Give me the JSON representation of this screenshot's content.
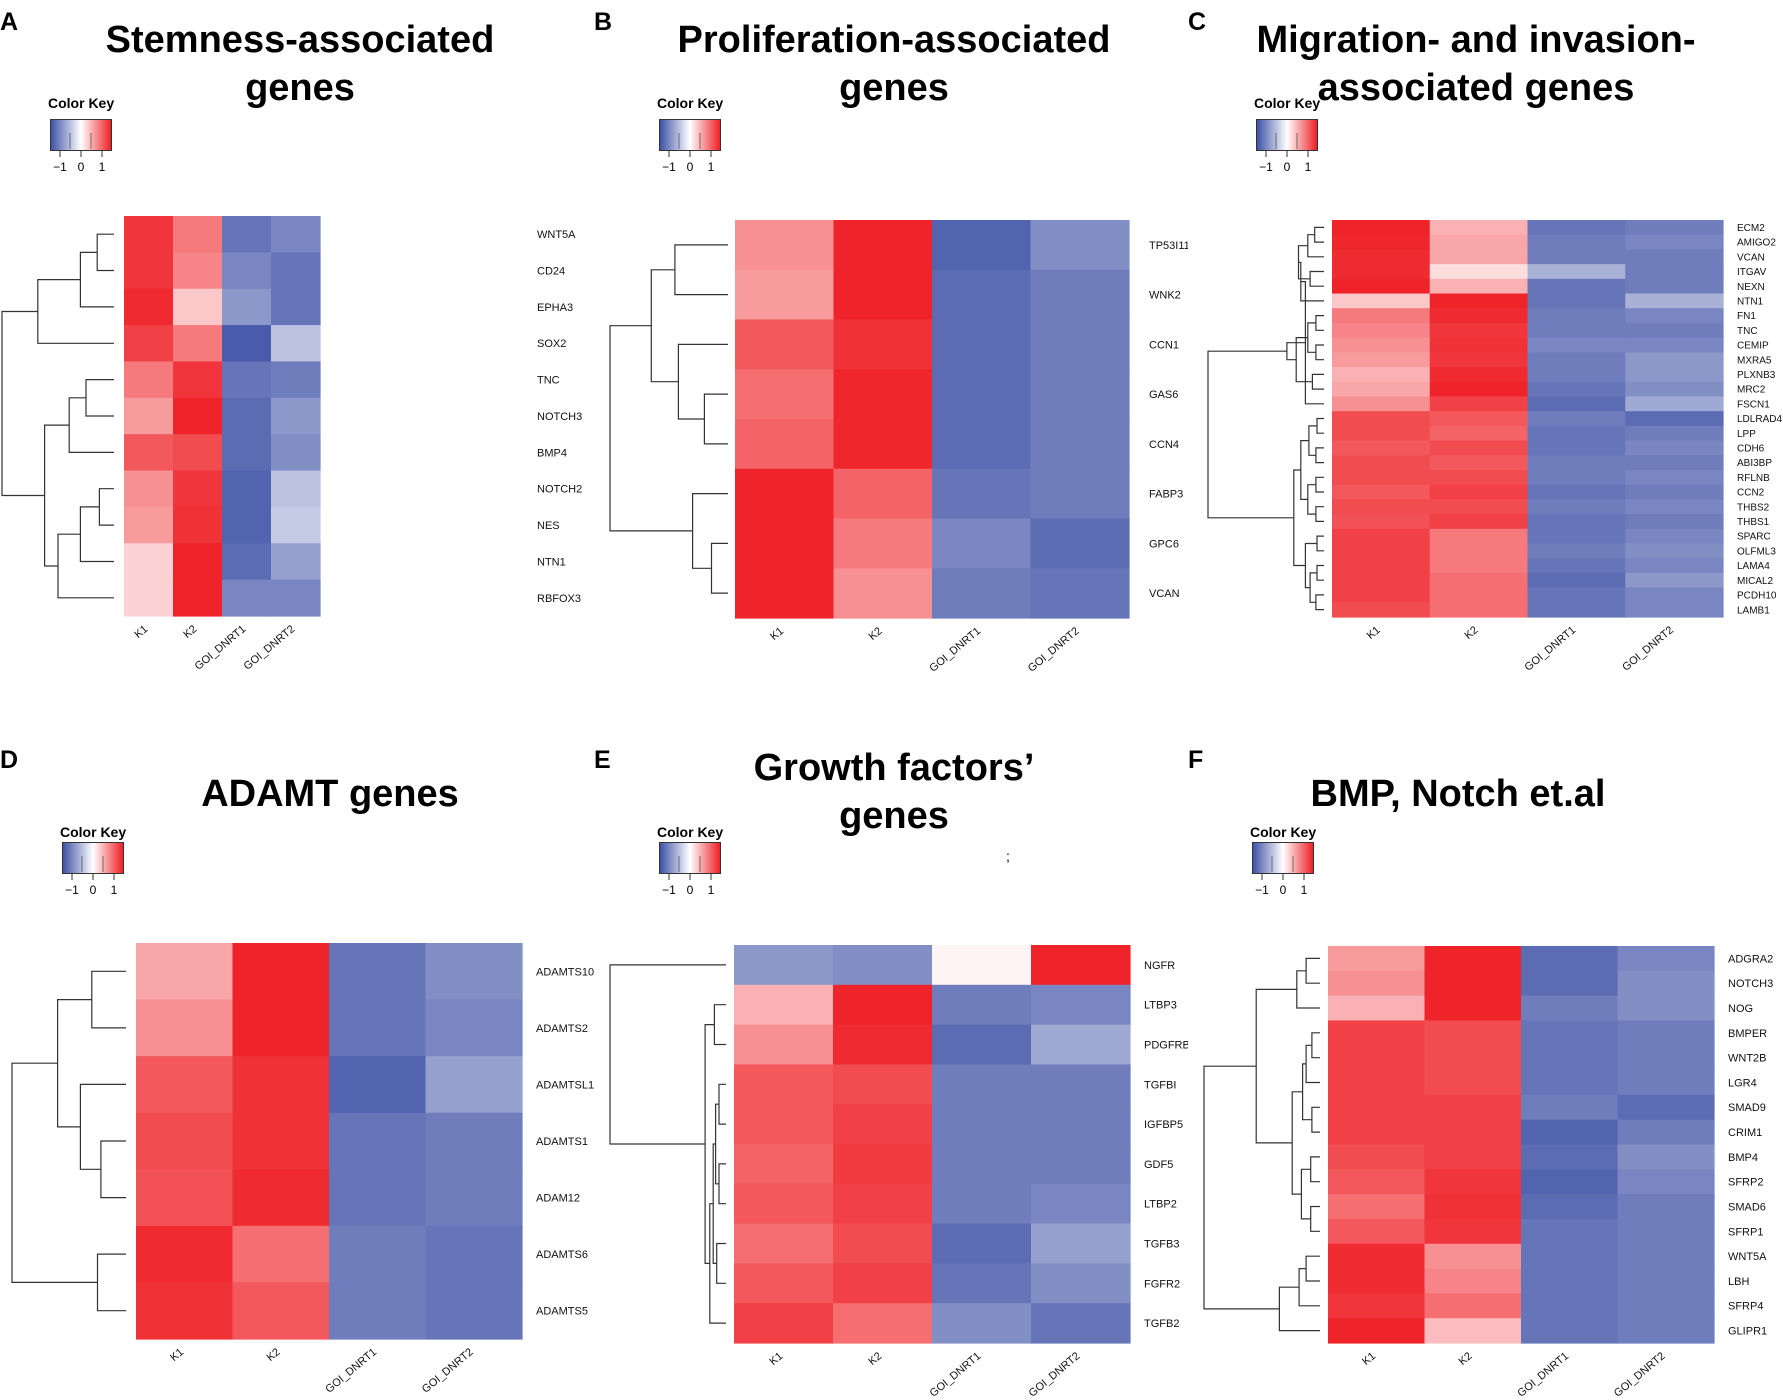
{
  "figure": {
    "panel_count": 6
  },
  "colors": {
    "low": "#3f52a6",
    "mid": "#ffffff",
    "high": "#ee2026",
    "dendrogram": "#333333"
  },
  "chart_data": [
    {
      "panel": "A",
      "type": "heatmap",
      "title_lines": [
        "Stemness-associated",
        "genes"
      ],
      "color_key": {
        "label": "Color Key",
        "ticks": [
          "−1",
          "0",
          "1"
        ],
        "range": [
          -1,
          1
        ]
      },
      "columns": [
        "K1",
        "K2",
        "GOI_DNRT1",
        "GOI_DNRT2"
      ],
      "rows": [
        "WNT5A",
        "CD24",
        "EPHA3",
        "SOX2",
        "TNC",
        "NOTCH3",
        "BMP4",
        "NOTCH2",
        "NES",
        "NTN1",
        "RBFOX3"
      ],
      "values": [
        [
          0.9,
          0.6,
          -0.8,
          -0.7
        ],
        [
          0.9,
          0.55,
          -0.7,
          -0.8
        ],
        [
          0.95,
          0.25,
          -0.6,
          -0.8
        ],
        [
          0.85,
          0.6,
          -0.95,
          -0.35
        ],
        [
          0.6,
          0.9,
          -0.8,
          -0.75
        ],
        [
          0.45,
          0.98,
          -0.85,
          -0.6
        ],
        [
          0.75,
          0.8,
          -0.85,
          -0.65
        ],
        [
          0.5,
          0.9,
          -0.9,
          -0.35
        ],
        [
          0.45,
          0.92,
          -0.9,
          -0.3
        ],
        [
          0.2,
          0.98,
          -0.85,
          -0.55
        ],
        [
          0.2,
          0.98,
          -0.7,
          -0.7
        ]
      ],
      "dendrogram": {
        "merges": [
          [
            0,
            1
          ],
          [
            11,
            2
          ],
          [
            12,
            3
          ],
          [
            7,
            8
          ],
          [
            14,
            9
          ],
          [
            15,
            10
          ],
          [
            4,
            5
          ],
          [
            17,
            6
          ],
          [
            18,
            16
          ],
          [
            13,
            19
          ]
        ],
        "heights": [
          0.15,
          0.3,
          0.68,
          0.13,
          0.3,
          0.5,
          0.25,
          0.4,
          0.62,
          1.0
        ]
      }
    },
    {
      "panel": "B",
      "type": "heatmap",
      "title_lines": [
        "Proliferation-associated",
        "genes"
      ],
      "color_key": {
        "label": "Color Key",
        "ticks": [
          "−1",
          "0",
          "1"
        ],
        "range": [
          -1,
          1
        ]
      },
      "columns": [
        "K1",
        "K2",
        "GOI_DNRT1",
        "GOI_DNRT2"
      ],
      "rows": [
        "TP53I11",
        "WNK2",
        "CCN1",
        "GAS6",
        "CCN4",
        "FABP3",
        "GPC6",
        "VCAN"
      ],
      "values": [
        [
          0.5,
          0.98,
          -0.9,
          -0.65
        ],
        [
          0.45,
          0.98,
          -0.85,
          -0.75
        ],
        [
          0.75,
          0.92,
          -0.85,
          -0.75
        ],
        [
          0.65,
          0.97,
          -0.85,
          -0.75
        ],
        [
          0.7,
          0.97,
          -0.85,
          -0.75
        ],
        [
          0.98,
          0.7,
          -0.8,
          -0.75
        ],
        [
          0.98,
          0.6,
          -0.7,
          -0.85
        ],
        [
          0.98,
          0.5,
          -0.75,
          -0.8
        ]
      ],
      "dendrogram": {
        "merges": [
          [
            0,
            1
          ],
          [
            3,
            4
          ],
          [
            2,
            9
          ],
          [
            6,
            7
          ],
          [
            5,
            11
          ],
          [
            8,
            10
          ],
          [
            12,
            13
          ]
        ],
        "heights": [
          0.45,
          0.2,
          0.42,
          0.14,
          0.3,
          0.65,
          1.0
        ]
      }
    },
    {
      "panel": "C",
      "type": "heatmap",
      "title_lines": [
        "Migration- and invasion-",
        "associated genes"
      ],
      "color_key": {
        "label": "Color Key",
        "ticks": [
          "−1",
          "0",
          "1"
        ],
        "range": [
          -1,
          1
        ]
      },
      "columns": [
        "K1",
        "K2",
        "GOI_DNRT1",
        "GOI_DNRT2"
      ],
      "rows": [
        "ECM2",
        "AMIGO2",
        "VCAN",
        "ITGAV",
        "NEXN",
        "NTN1",
        "FN1",
        "TNC",
        "CEMIP",
        "MXRA5",
        "PLXNB3",
        "MRC2",
        "FSCN1",
        "LDLRAD4",
        "LPP",
        "CDH6",
        "ABI3BP",
        "RFLNB",
        "CCN2",
        "THBS2",
        "THBS1",
        "SPARC",
        "OLFML3",
        "LAMA4",
        "MICAL2",
        "PCDH10",
        "LAMB1"
      ],
      "values": [
        [
          0.98,
          0.35,
          -0.8,
          -0.75
        ],
        [
          0.97,
          0.4,
          -0.75,
          -0.7
        ],
        [
          0.95,
          0.4,
          -0.75,
          -0.75
        ],
        [
          0.95,
          0.15,
          -0.45,
          -0.75
        ],
        [
          0.98,
          0.35,
          -0.8,
          -0.75
        ],
        [
          0.25,
          0.98,
          -0.8,
          -0.45
        ],
        [
          0.6,
          0.95,
          -0.75,
          -0.7
        ],
        [
          0.55,
          0.9,
          -0.75,
          -0.75
        ],
        [
          0.5,
          0.92,
          -0.7,
          -0.7
        ],
        [
          0.45,
          0.9,
          -0.75,
          -0.6
        ],
        [
          0.35,
          0.95,
          -0.75,
          -0.6
        ],
        [
          0.4,
          0.98,
          -0.8,
          -0.65
        ],
        [
          0.5,
          0.85,
          -0.85,
          -0.5
        ],
        [
          0.8,
          0.75,
          -0.75,
          -0.85
        ],
        [
          0.8,
          0.7,
          -0.8,
          -0.75
        ],
        [
          0.75,
          0.8,
          -0.8,
          -0.7
        ],
        [
          0.8,
          0.75,
          -0.75,
          -0.75
        ],
        [
          0.8,
          0.8,
          -0.75,
          -0.7
        ],
        [
          0.75,
          0.85,
          -0.8,
          -0.75
        ],
        [
          0.8,
          0.8,
          -0.75,
          -0.7
        ],
        [
          0.78,
          0.85,
          -0.8,
          -0.75
        ],
        [
          0.85,
          0.6,
          -0.8,
          -0.7
        ],
        [
          0.85,
          0.6,
          -0.75,
          -0.65
        ],
        [
          0.85,
          0.6,
          -0.8,
          -0.7
        ],
        [
          0.85,
          0.65,
          -0.85,
          -0.6
        ],
        [
          0.85,
          0.65,
          -0.8,
          -0.7
        ],
        [
          0.8,
          0.65,
          -0.8,
          -0.7
        ]
      ],
      "dendrogram": {
        "merges": [
          [
            0,
            1
          ],
          [
            27,
            2
          ],
          [
            3,
            4
          ],
          [
            28,
            29
          ],
          [
            6,
            7
          ],
          [
            8,
            9
          ],
          [
            31,
            32
          ],
          [
            30,
            5
          ],
          [
            10,
            11
          ],
          [
            34,
            12
          ],
          [
            33,
            35
          ],
          [
            36,
            37
          ],
          [
            13,
            14
          ],
          [
            15,
            16
          ],
          [
            39,
            40
          ],
          [
            17,
            18
          ],
          [
            19,
            20
          ],
          [
            42,
            43
          ],
          [
            41,
            44
          ],
          [
            21,
            22
          ],
          [
            23,
            24
          ],
          [
            25,
            26
          ],
          [
            47,
            48
          ],
          [
            46,
            49
          ],
          [
            45,
            50
          ],
          [
            38,
            51
          ]
        ],
        "heights": [
          0.08,
          0.14,
          0.12,
          0.22,
          0.07,
          0.07,
          0.14,
          0.2,
          0.1,
          0.16,
          0.24,
          0.32,
          0.06,
          0.07,
          0.13,
          0.07,
          0.07,
          0.14,
          0.2,
          0.06,
          0.06,
          0.07,
          0.12,
          0.16,
          0.26,
          1.0
        ]
      }
    },
    {
      "panel": "D",
      "type": "heatmap",
      "title_lines": [
        "ADAMT genes"
      ],
      "color_key": {
        "label": "Color Key",
        "ticks": [
          "−1",
          "0",
          "1"
        ],
        "range": [
          -1,
          1
        ]
      },
      "columns": [
        "K1",
        "K2",
        "GOI_DNRT1",
        "GOI_DNRT2"
      ],
      "rows": [
        "ADAMTS10",
        "ADAMTS2",
        "ADAMTSL1",
        "ADAMTS1",
        "ADAM12",
        "ADAMTS6",
        "ADAMTS5"
      ],
      "values": [
        [
          0.4,
          0.98,
          -0.8,
          -0.65
        ],
        [
          0.5,
          0.98,
          -0.8,
          -0.7
        ],
        [
          0.75,
          0.92,
          -0.9,
          -0.55
        ],
        [
          0.8,
          0.92,
          -0.8,
          -0.75
        ],
        [
          0.78,
          0.95,
          -0.8,
          -0.75
        ],
        [
          0.95,
          0.65,
          -0.75,
          -0.8
        ],
        [
          0.92,
          0.75,
          -0.75,
          -0.8
        ]
      ],
      "dendrogram": {
        "merges": [
          [
            0,
            1
          ],
          [
            3,
            4
          ],
          [
            2,
            8
          ],
          [
            7,
            9
          ],
          [
            5,
            6
          ],
          [
            10,
            11
          ]
        ],
        "heights": [
          0.3,
          0.22,
          0.4,
          0.6,
          0.25,
          1.0
        ]
      }
    },
    {
      "panel": "E",
      "type": "heatmap",
      "title_lines": [
        "Growth factors’",
        "genes"
      ],
      "color_key": {
        "label": "Color Key",
        "ticks": [
          "−1",
          "0",
          "1"
        ],
        "range": [
          -1,
          1
        ]
      },
      "columns": [
        "K1",
        "K2",
        "GOI_DNRT1",
        "GOI_DNRT2"
      ],
      "rows": [
        "NGFR",
        "LTBP3",
        "PDGFRB",
        "TGFBI",
        "IGFBP5",
        "GDF5",
        "LTBP2",
        "TGFB3",
        "FGFR2",
        "TGFB2"
      ],
      "values": [
        [
          -0.6,
          -0.65,
          0.05,
          0.98
        ],
        [
          0.35,
          0.98,
          -0.75,
          -0.7
        ],
        [
          0.5,
          0.95,
          -0.85,
          -0.5
        ],
        [
          0.75,
          0.8,
          -0.75,
          -0.75
        ],
        [
          0.75,
          0.85,
          -0.75,
          -0.75
        ],
        [
          0.7,
          0.88,
          -0.75,
          -0.75
        ],
        [
          0.75,
          0.85,
          -0.75,
          -0.7
        ],
        [
          0.65,
          0.8,
          -0.85,
          -0.55
        ],
        [
          0.75,
          0.85,
          -0.8,
          -0.65
        ],
        [
          0.85,
          0.65,
          -0.65,
          -0.8
        ]
      ],
      "dendrogram": {
        "merges": [
          [
            1,
            2
          ],
          [
            3,
            4
          ],
          [
            5,
            6
          ],
          [
            11,
            12
          ],
          [
            7,
            8
          ],
          [
            13,
            14
          ],
          [
            15,
            9
          ],
          [
            10,
            16
          ],
          [
            0,
            17
          ]
        ],
        "heights": [
          0.1,
          0.06,
          0.06,
          0.09,
          0.08,
          0.11,
          0.14,
          0.18,
          1.0
        ]
      }
    },
    {
      "panel": "F",
      "type": "heatmap",
      "title_lines": [
        "BMP, Notch et.al"
      ],
      "color_key": {
        "label": "Color Key",
        "ticks": [
          "−1",
          "0",
          "1"
        ],
        "range": [
          -1,
          1
        ]
      },
      "columns": [
        "K1",
        "K2",
        "GOI_DNRT1",
        "GOI_DNRT2"
      ],
      "rows": [
        "ADGRA2",
        "NOTCH3",
        "NOG",
        "BMPER",
        "WNT2B",
        "LGR4",
        "SMAD9",
        "CRIM1",
        "BMP4",
        "SFRP2",
        "SMAD6",
        "SFRP1",
        "WNT5A",
        "LBH",
        "SFRP4",
        "GLIPR1"
      ],
      "values": [
        [
          0.45,
          0.98,
          -0.85,
          -0.7
        ],
        [
          0.5,
          0.98,
          -0.85,
          -0.65
        ],
        [
          0.35,
          0.98,
          -0.75,
          -0.65
        ],
        [
          0.85,
          0.8,
          -0.8,
          -0.75
        ],
        [
          0.85,
          0.8,
          -0.8,
          -0.75
        ],
        [
          0.85,
          0.8,
          -0.8,
          -0.75
        ],
        [
          0.85,
          0.85,
          -0.75,
          -0.85
        ],
        [
          0.85,
          0.85,
          -0.9,
          -0.75
        ],
        [
          0.8,
          0.85,
          -0.85,
          -0.65
        ],
        [
          0.75,
          0.9,
          -0.9,
          -0.7
        ],
        [
          0.65,
          0.92,
          -0.85,
          -0.75
        ],
        [
          0.75,
          0.9,
          -0.8,
          -0.75
        ],
        [
          0.95,
          0.5,
          -0.8,
          -0.75
        ],
        [
          0.95,
          0.55,
          -0.8,
          -0.75
        ],
        [
          0.9,
          0.65,
          -0.8,
          -0.75
        ],
        [
          0.98,
          0.3,
          -0.8,
          -0.75
        ]
      ],
      "dendrogram": {
        "merges": [
          [
            0,
            1
          ],
          [
            16,
            2
          ],
          [
            3,
            4
          ],
          [
            18,
            5
          ],
          [
            6,
            7
          ],
          [
            19,
            20
          ],
          [
            8,
            9
          ],
          [
            10,
            11
          ],
          [
            22,
            23
          ],
          [
            21,
            24
          ],
          [
            17,
            25
          ],
          [
            12,
            13
          ],
          [
            27,
            14
          ],
          [
            28,
            15
          ],
          [
            26,
            29
          ]
        ],
        "heights": [
          0.12,
          0.2,
          0.07,
          0.12,
          0.07,
          0.15,
          0.08,
          0.08,
          0.16,
          0.24,
          0.55,
          0.12,
          0.18,
          0.35,
          1.0
        ]
      }
    }
  ],
  "stray_mark": ";"
}
